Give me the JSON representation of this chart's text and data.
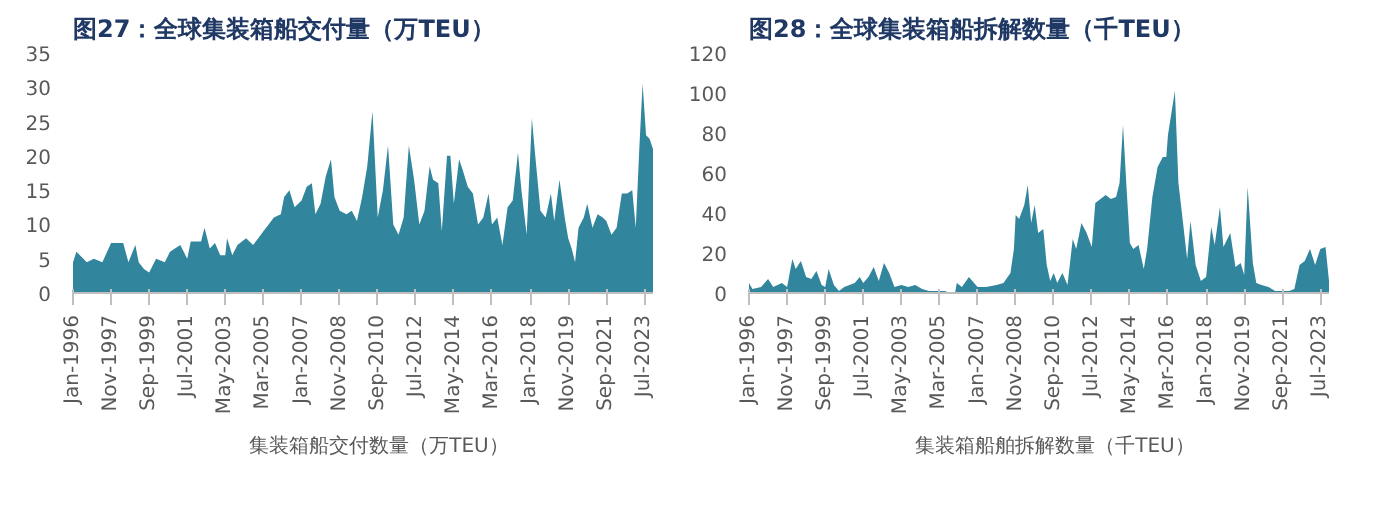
{
  "chart_data": [
    {
      "type": "area",
      "title": "图27：全球集装箱船交付量（万TEU）",
      "legend": "bottom",
      "grid": false,
      "xlim": [
        "1996-01",
        "2023-12"
      ],
      "ylim": [
        0,
        35
      ],
      "yticks": [
        0,
        5,
        10,
        15,
        20,
        25,
        30,
        35
      ],
      "xticks": [
        {
          "value": "1996-01",
          "label": "Jan-1996"
        },
        {
          "value": "1997-11",
          "label": "Nov-1997"
        },
        {
          "value": "1999-09",
          "label": "Sep-1999"
        },
        {
          "value": "2001-07",
          "label": "Jul-2001"
        },
        {
          "value": "2003-05",
          "label": "May-2003"
        },
        {
          "value": "2005-03",
          "label": "Mar-2005"
        },
        {
          "value": "2007-01",
          "label": "Jan-2007"
        },
        {
          "value": "2008-11",
          "label": "Nov-2008"
        },
        {
          "value": "2010-09",
          "label": "Sep-2010"
        },
        {
          "value": "2012-07",
          "label": "Jul-2012"
        },
        {
          "value": "2014-05",
          "label": "May-2014"
        },
        {
          "value": "2016-03",
          "label": "Mar-2016"
        },
        {
          "value": "2018-01",
          "label": "Jan-2018"
        },
        {
          "value": "2019-11",
          "label": "Nov-2019"
        },
        {
          "value": "2021-09",
          "label": "Sep-2021"
        },
        {
          "value": "2023-07",
          "label": "Jul-2023"
        }
      ],
      "series": [
        {
          "name": "集装箱船交付数量（万TEU）",
          "color": "#31859c",
          "x": [
            "1996-01",
            "1996-03",
            "1996-09",
            "1997-01",
            "1997-06",
            "1997-11",
            "1998-06",
            "1998-09",
            "1999-01",
            "1999-03",
            "1999-06",
            "1999-09",
            "2000-01",
            "2000-06",
            "2000-09",
            "2001-03",
            "2001-07",
            "2001-09",
            "2002-03",
            "2002-05",
            "2002-08",
            "2002-11",
            "2003-02",
            "2003-05",
            "2003-06",
            "2003-09",
            "2003-12",
            "2004-05",
            "2004-09",
            "2004-12",
            "2005-03",
            "2005-06",
            "2005-09",
            "2006-01",
            "2006-03",
            "2006-06",
            "2006-09",
            "2007-01",
            "2007-04",
            "2007-07",
            "2007-09",
            "2007-12",
            "2008-03",
            "2008-06",
            "2008-08",
            "2008-11",
            "2009-03",
            "2009-06",
            "2009-09",
            "2009-12",
            "2010-03",
            "2010-06",
            "2010-09",
            "2010-12",
            "2011-03",
            "2011-06",
            "2011-09",
            "2011-12",
            "2012-03",
            "2012-06",
            "2012-09",
            "2012-12",
            "2013-03",
            "2013-05",
            "2013-08",
            "2013-10",
            "2014-01",
            "2014-03",
            "2014-05",
            "2014-08",
            "2014-10",
            "2015-01",
            "2015-04",
            "2015-07",
            "2015-10",
            "2016-01",
            "2016-03",
            "2016-06",
            "2016-09",
            "2016-12",
            "2017-03",
            "2017-06",
            "2017-08",
            "2017-11",
            "2018-02",
            "2018-04",
            "2018-07",
            "2018-10",
            "2019-01",
            "2019-03",
            "2019-06",
            "2019-09",
            "2019-11",
            "2020-01",
            "2020-03",
            "2020-05",
            "2020-08",
            "2020-10",
            "2021-01",
            "2021-04",
            "2021-07",
            "2021-09",
            "2021-12",
            "2022-03",
            "2022-06",
            "2022-09",
            "2022-12",
            "2023-02",
            "2023-04",
            "2023-06",
            "2023-08",
            "2023-10",
            "2023-12"
          ],
          "values": [
            4.5,
            6,
            4.5,
            5,
            4.5,
            7.3,
            7.3,
            4.5,
            7,
            4.5,
            3.5,
            3,
            5,
            4.5,
            6,
            7,
            5,
            7.5,
            7.5,
            9.5,
            6.5,
            7.3,
            5.5,
            5.5,
            8,
            5.5,
            7,
            8,
            7,
            8,
            9,
            10,
            11,
            11.5,
            14,
            15,
            12.5,
            13.5,
            15.5,
            16,
            11.5,
            13,
            17,
            19.5,
            14,
            12,
            11.5,
            12,
            10.5,
            14,
            18.5,
            26.5,
            11,
            15,
            21.5,
            10,
            8.5,
            11,
            21.5,
            16.5,
            10,
            12,
            18.5,
            16.5,
            16,
            9,
            20,
            20,
            13,
            19.5,
            18,
            15.5,
            14.5,
            10,
            11,
            14.5,
            10,
            11,
            7,
            12.5,
            13.5,
            20.5,
            15,
            8.5,
            25.5,
            20,
            12,
            11,
            14.5,
            10.5,
            16.5,
            11,
            8,
            6.5,
            4.5,
            9.5,
            11,
            13,
            9.5,
            11.5,
            11,
            10.5,
            8.5,
            9.5,
            14.5,
            14.5,
            15,
            9.5,
            20.5,
            30.5,
            23,
            22.5,
            21
          ]
        }
      ]
    },
    {
      "type": "area",
      "title": "图28：全球集装箱船拆解数量（千TEU）",
      "legend": "bottom",
      "grid": false,
      "xlim": [
        "1996-01",
        "2023-12"
      ],
      "ylim": [
        0,
        120
      ],
      "yticks": [
        0,
        20,
        40,
        60,
        80,
        100,
        120
      ],
      "xticks": [
        {
          "value": "1996-01",
          "label": "Jan-1996"
        },
        {
          "value": "1997-11",
          "label": "Nov-1997"
        },
        {
          "value": "1999-09",
          "label": "Sep-1999"
        },
        {
          "value": "2001-07",
          "label": "Jul-2001"
        },
        {
          "value": "2003-05",
          "label": "May-2003"
        },
        {
          "value": "2005-03",
          "label": "Mar-2005"
        },
        {
          "value": "2007-01",
          "label": "Jan-2007"
        },
        {
          "value": "2008-11",
          "label": "Nov-2008"
        },
        {
          "value": "2010-09",
          "label": "Sep-2010"
        },
        {
          "value": "2012-07",
          "label": "Jul-2012"
        },
        {
          "value": "2014-05",
          "label": "May-2014"
        },
        {
          "value": "2016-03",
          "label": "Mar-2016"
        },
        {
          "value": "2018-01",
          "label": "Jan-2018"
        },
        {
          "value": "2019-11",
          "label": "Nov-2019"
        },
        {
          "value": "2021-09",
          "label": "Sep-2021"
        },
        {
          "value": "2023-07",
          "label": "Jul-2023"
        }
      ],
      "series": [
        {
          "name": "集装箱船舶拆解数量（千TEU）",
          "color": "#31859c",
          "x": [
            "1996-01",
            "1996-03",
            "1996-08",
            "1996-12",
            "1997-03",
            "1997-08",
            "1997-11",
            "1998-02",
            "1998-04",
            "1998-07",
            "1998-10",
            "1999-01",
            "1999-04",
            "1999-07",
            "1999-09",
            "1999-11",
            "2000-02",
            "2000-05",
            "2000-08",
            "2000-11",
            "2001-02",
            "2001-05",
            "2001-07",
            "2001-10",
            "2002-01",
            "2002-04",
            "2002-07",
            "2002-10",
            "2003-01",
            "2003-05",
            "2003-09",
            "2004-01",
            "2004-05",
            "2004-09",
            "2005-01",
            "2005-03",
            "2005-06",
            "2005-09",
            "2005-12",
            "2006-01",
            "2006-04",
            "2006-08",
            "2006-11",
            "2007-01",
            "2007-06",
            "2007-12",
            "2008-04",
            "2008-08",
            "2008-10",
            "2008-11",
            "2009-01",
            "2009-04",
            "2009-06",
            "2009-08",
            "2009-10",
            "2009-12",
            "2010-03",
            "2010-05",
            "2010-07",
            "2010-09",
            "2010-11",
            "2011-02",
            "2011-05",
            "2011-08",
            "2011-10",
            "2012-01",
            "2012-04",
            "2012-07",
            "2012-09",
            "2012-12",
            "2013-03",
            "2013-06",
            "2013-09",
            "2013-11",
            "2014-01",
            "2014-03",
            "2014-05",
            "2014-07",
            "2014-10",
            "2015-01",
            "2015-03",
            "2015-06",
            "2015-09",
            "2015-12",
            "2016-02",
            "2016-03",
            "2016-05",
            "2016-07",
            "2016-09",
            "2016-11",
            "2017-02",
            "2017-04",
            "2017-07",
            "2017-10",
            "2018-01",
            "2018-04",
            "2018-06",
            "2018-09",
            "2018-11",
            "2019-03",
            "2019-06",
            "2019-09",
            "2019-11",
            "2020-01",
            "2020-04",
            "2020-06",
            "2020-09",
            "2021-01",
            "2021-05",
            "2021-09",
            "2022-01",
            "2022-04",
            "2022-07",
            "2022-10",
            "2023-01",
            "2023-04",
            "2023-07",
            "2023-10",
            "2023-12"
          ],
          "values": [
            5,
            2,
            3,
            7,
            3,
            5,
            3,
            17,
            12,
            16,
            8,
            7,
            11,
            4,
            3,
            12,
            4,
            1,
            3,
            4,
            5,
            8,
            5,
            8,
            13,
            6,
            15,
            10,
            3,
            4,
            3,
            4,
            2,
            1,
            1,
            1,
            1,
            0,
            0,
            5,
            3,
            8,
            5,
            3,
            3,
            4,
            5,
            10,
            22,
            39,
            37,
            44,
            54,
            35,
            44,
            30,
            32,
            14,
            6,
            10,
            5,
            10,
            4,
            27,
            22,
            35,
            30,
            23,
            45,
            47,
            49,
            47,
            48,
            55,
            84,
            54,
            25,
            22,
            24,
            12,
            22,
            48,
            63,
            68,
            68,
            79,
            90,
            101,
            55,
            40,
            17,
            36,
            14,
            6,
            8,
            33,
            24,
            43,
            23,
            30,
            13,
            15,
            9,
            53,
            15,
            5,
            4,
            3,
            1,
            1,
            1,
            2,
            14,
            16,
            22,
            14,
            22,
            23,
            6
          ]
        }
      ]
    }
  ]
}
